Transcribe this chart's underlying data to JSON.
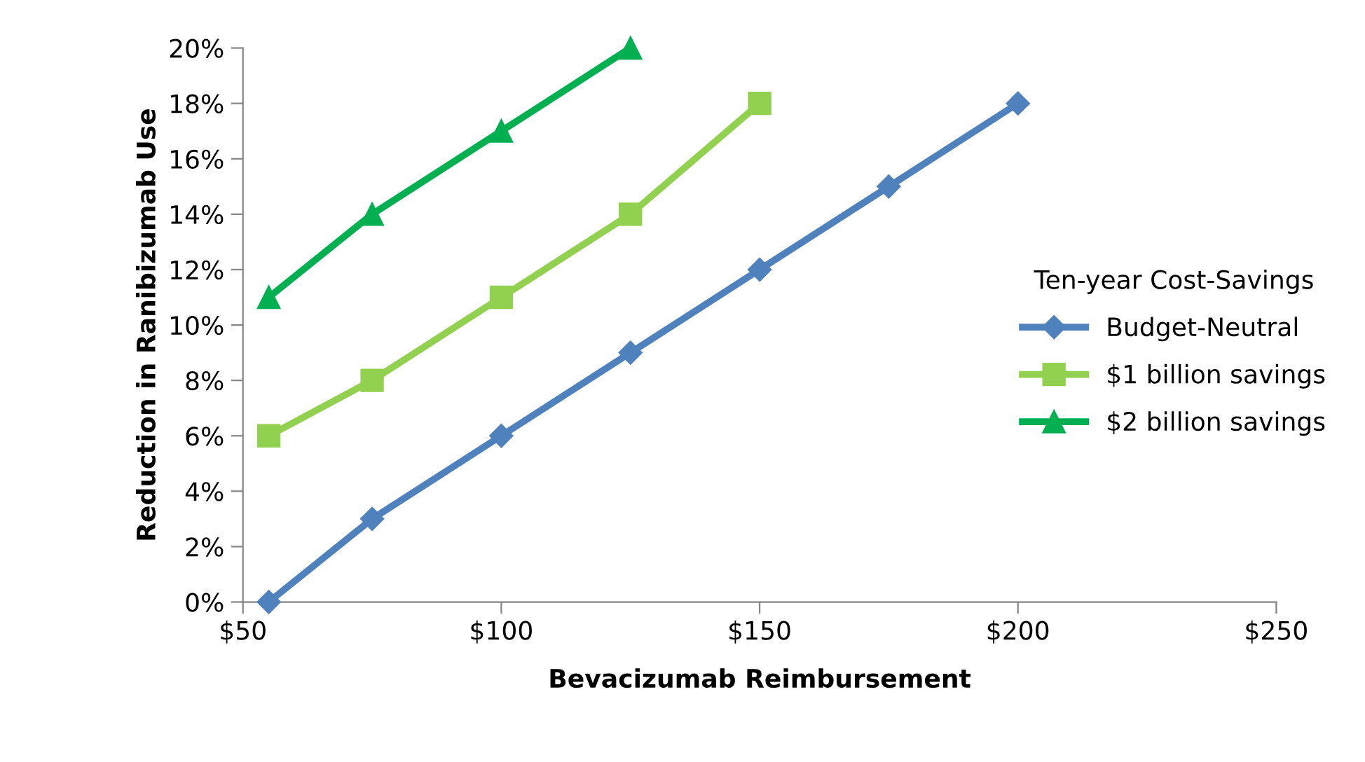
{
  "chart_data": {
    "type": "line",
    "xlabel": "Bevacizumab Reimbursement",
    "ylabel": "Reduction in Ranibizumab Use",
    "legend_title": "Ten-year Cost-Savings",
    "legend": "right",
    "grid": false,
    "xlim": [
      50,
      250
    ],
    "xticks": [
      {
        "value": 50,
        "label": "$50"
      },
      {
        "value": 100,
        "label": "$100"
      },
      {
        "value": 150,
        "label": "$150"
      },
      {
        "value": 200,
        "label": "$200"
      },
      {
        "value": 250,
        "label": "$250"
      }
    ],
    "ylim": [
      0,
      20
    ],
    "yticks": [
      {
        "value": 0,
        "label": "0%"
      },
      {
        "value": 2,
        "label": "2%"
      },
      {
        "value": 4,
        "label": "4%"
      },
      {
        "value": 6,
        "label": "6%"
      },
      {
        "value": 8,
        "label": "8%"
      },
      {
        "value": 10,
        "label": "10%"
      },
      {
        "value": 12,
        "label": "12%"
      },
      {
        "value": 14,
        "label": "14%"
      },
      {
        "value": 16,
        "label": "16%"
      },
      {
        "value": 18,
        "label": "18%"
      },
      {
        "value": 20,
        "label": "20%"
      }
    ],
    "series": [
      {
        "name": "Budget-Neutral",
        "color": "#4f81bd",
        "marker": "diamond",
        "x": [
          55,
          75,
          100,
          125,
          150,
          175,
          200
        ],
        "values": [
          0,
          3,
          6,
          9,
          12,
          15,
          18
        ]
      },
      {
        "name": "$1 billion savings",
        "color": "#92d050",
        "marker": "square",
        "x": [
          55,
          75,
          100,
          125,
          150
        ],
        "values": [
          6,
          8,
          11,
          14,
          18
        ]
      },
      {
        "name": "$2 billion savings",
        "color": "#00b050",
        "marker": "triangle",
        "x": [
          55,
          75,
          100,
          125
        ],
        "values": [
          11,
          14,
          17,
          20
        ]
      }
    ]
  }
}
